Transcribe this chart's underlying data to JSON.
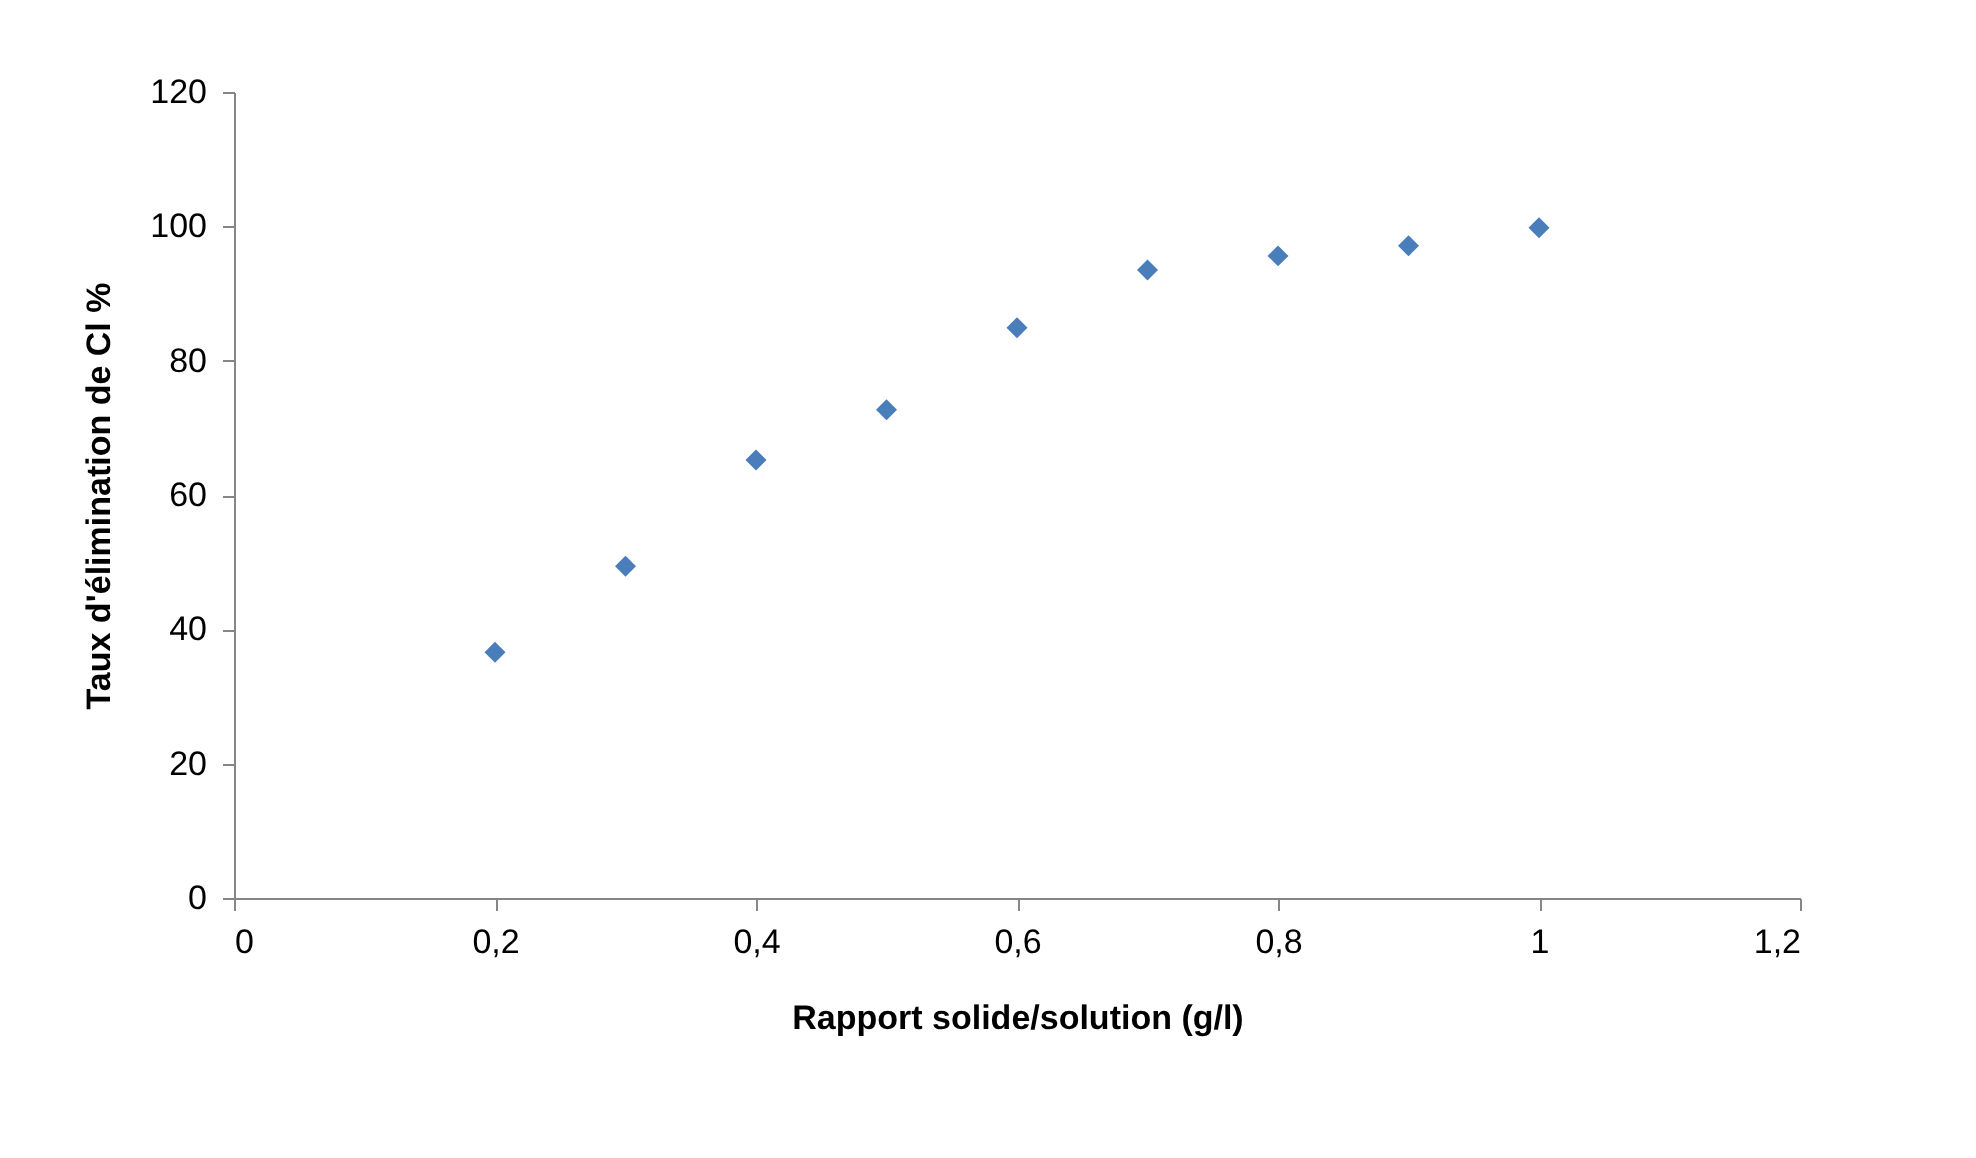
{
  "chart_data": {
    "type": "scatter",
    "xlabel": "Rapport solide/solution (g/l)",
    "ylabel": "Taux d'élimination de Cl %",
    "x": [
      0.2,
      0.3,
      0.4,
      0.5,
      0.6,
      0.7,
      0.8,
      0.9,
      1.0
    ],
    "series": [
      {
        "color": "#4a7ebb",
        "values": [
          36.6,
          49.4,
          65.2,
          72.7,
          84.9,
          93.5,
          95.6,
          97.1,
          99.8
        ]
      }
    ],
    "xlim": [
      0,
      1.2
    ],
    "ylim": [
      0,
      120
    ],
    "xticks": [
      0,
      {
        "value": 0.2,
        "label": "0,2"
      },
      {
        "value": 0.4,
        "label": "0,4"
      },
      {
        "value": 0.6,
        "label": "0,6"
      },
      {
        "value": 0.8,
        "label": "0,8"
      },
      1,
      {
        "value": 1.2,
        "label": "1,2"
      }
    ],
    "yticks": [
      0,
      20,
      40,
      60,
      80,
      100,
      120
    ],
    "marker": "diamond",
    "grid": false
  }
}
